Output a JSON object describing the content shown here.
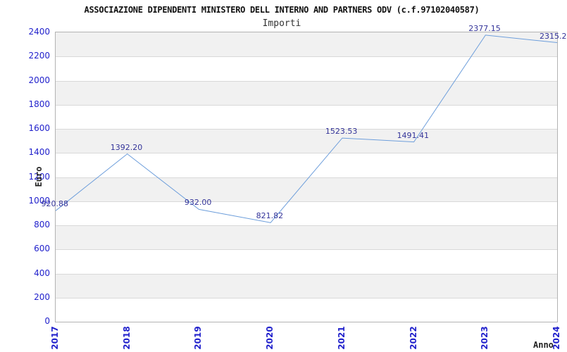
{
  "chart_data": {
    "type": "line",
    "title": "ASSOCIAZIONE DIPENDENTI MINISTERO DELL INTERNO AND PARTNERS ODV (c.f.97102040587)",
    "subtitle": "Importi",
    "xlabel": "Anno",
    "ylabel": "Euro",
    "categories": [
      "2017",
      "2018",
      "2019",
      "2020",
      "2021",
      "2022",
      "2023",
      "2024"
    ],
    "values": [
      920.88,
      1392.2,
      932.0,
      821.82,
      1523.53,
      1491.41,
      2377.15,
      2315.2
    ],
    "point_labels": [
      "920.88",
      "1392.20",
      "932.00",
      "821.82",
      "1523.53",
      "1491.41",
      "2377.15",
      "2315.2"
    ],
    "ylim": [
      0,
      2400
    ],
    "ytick_step": 200,
    "ytick_labels": [
      "0",
      "200",
      "400",
      "600",
      "800",
      "1000",
      "1200",
      "1400",
      "1600",
      "1800",
      "2000",
      "2200",
      "2400"
    ],
    "grid": true,
    "legend_position": "none",
    "colors": {
      "line": "#6d9edb",
      "tick_labels": "#2222cc",
      "point_labels": "#333399",
      "band_light": "#ffffff",
      "band_dark": "#f1f1f1",
      "gridline": "#d9d9d9",
      "axis_border": "#b3b3b3"
    }
  }
}
